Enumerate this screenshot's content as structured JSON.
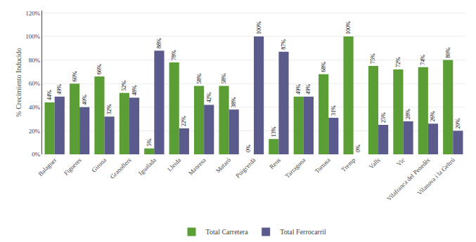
{
  "chart_data": {
    "type": "bar",
    "ylabel": "% Crecimiento Inducido",
    "categories": [
      "Balaguer",
      "Figueres",
      "Girona",
      "Granollers",
      "Igualada",
      "Lleida",
      "Manresa",
      "Mataró",
      "Puigcerdà",
      "Reus",
      "Tarragona",
      "Tortosa",
      "Tremp",
      "Valls",
      "Vic",
      "Vilafranca del Penedès",
      "Vilanova i la Geltrú"
    ],
    "series": [
      {
        "name": "Total Carretera",
        "color": "#5a9e35",
        "values": [
          44,
          60,
          66,
          52,
          5,
          78,
          58,
          58,
          0,
          13,
          49,
          68,
          100,
          75,
          72,
          74,
          80
        ],
        "value_labels": [
          "44%",
          "60%",
          "66%",
          "52%",
          "5%",
          "78%",
          "58%",
          "58%",
          "0%",
          "13%",
          "49%",
          "68%",
          "100%",
          "75%",
          "72%",
          "74%",
          "80%"
        ]
      },
      {
        "name": "Total Ferrocarril",
        "color": "#5a5a8c",
        "values": [
          49,
          40,
          32,
          48,
          88,
          22,
          42,
          38,
          100,
          87,
          49,
          31,
          0,
          25,
          28,
          26,
          20
        ],
        "value_labels": [
          "49%",
          "40%",
          "32%",
          "48%",
          "88%",
          "22%",
          "42%",
          "38%",
          "100%",
          "87%",
          "49%",
          "31%",
          "0%",
          "25%",
          "28%",
          "26%",
          "20%"
        ]
      }
    ],
    "ylim": [
      0,
      122
    ],
    "yticks": [
      {
        "value": 0,
        "label": "0%"
      },
      {
        "value": 20,
        "label": "20%"
      },
      {
        "value": 40,
        "label": "40%"
      },
      {
        "value": 60,
        "label": "60%"
      },
      {
        "value": 80,
        "label": "80%"
      },
      {
        "value": 100,
        "label": "100%"
      },
      {
        "value": 120,
        "label": "120%"
      }
    ],
    "grid": true,
    "legend": "bottom",
    "data_labels": true
  }
}
